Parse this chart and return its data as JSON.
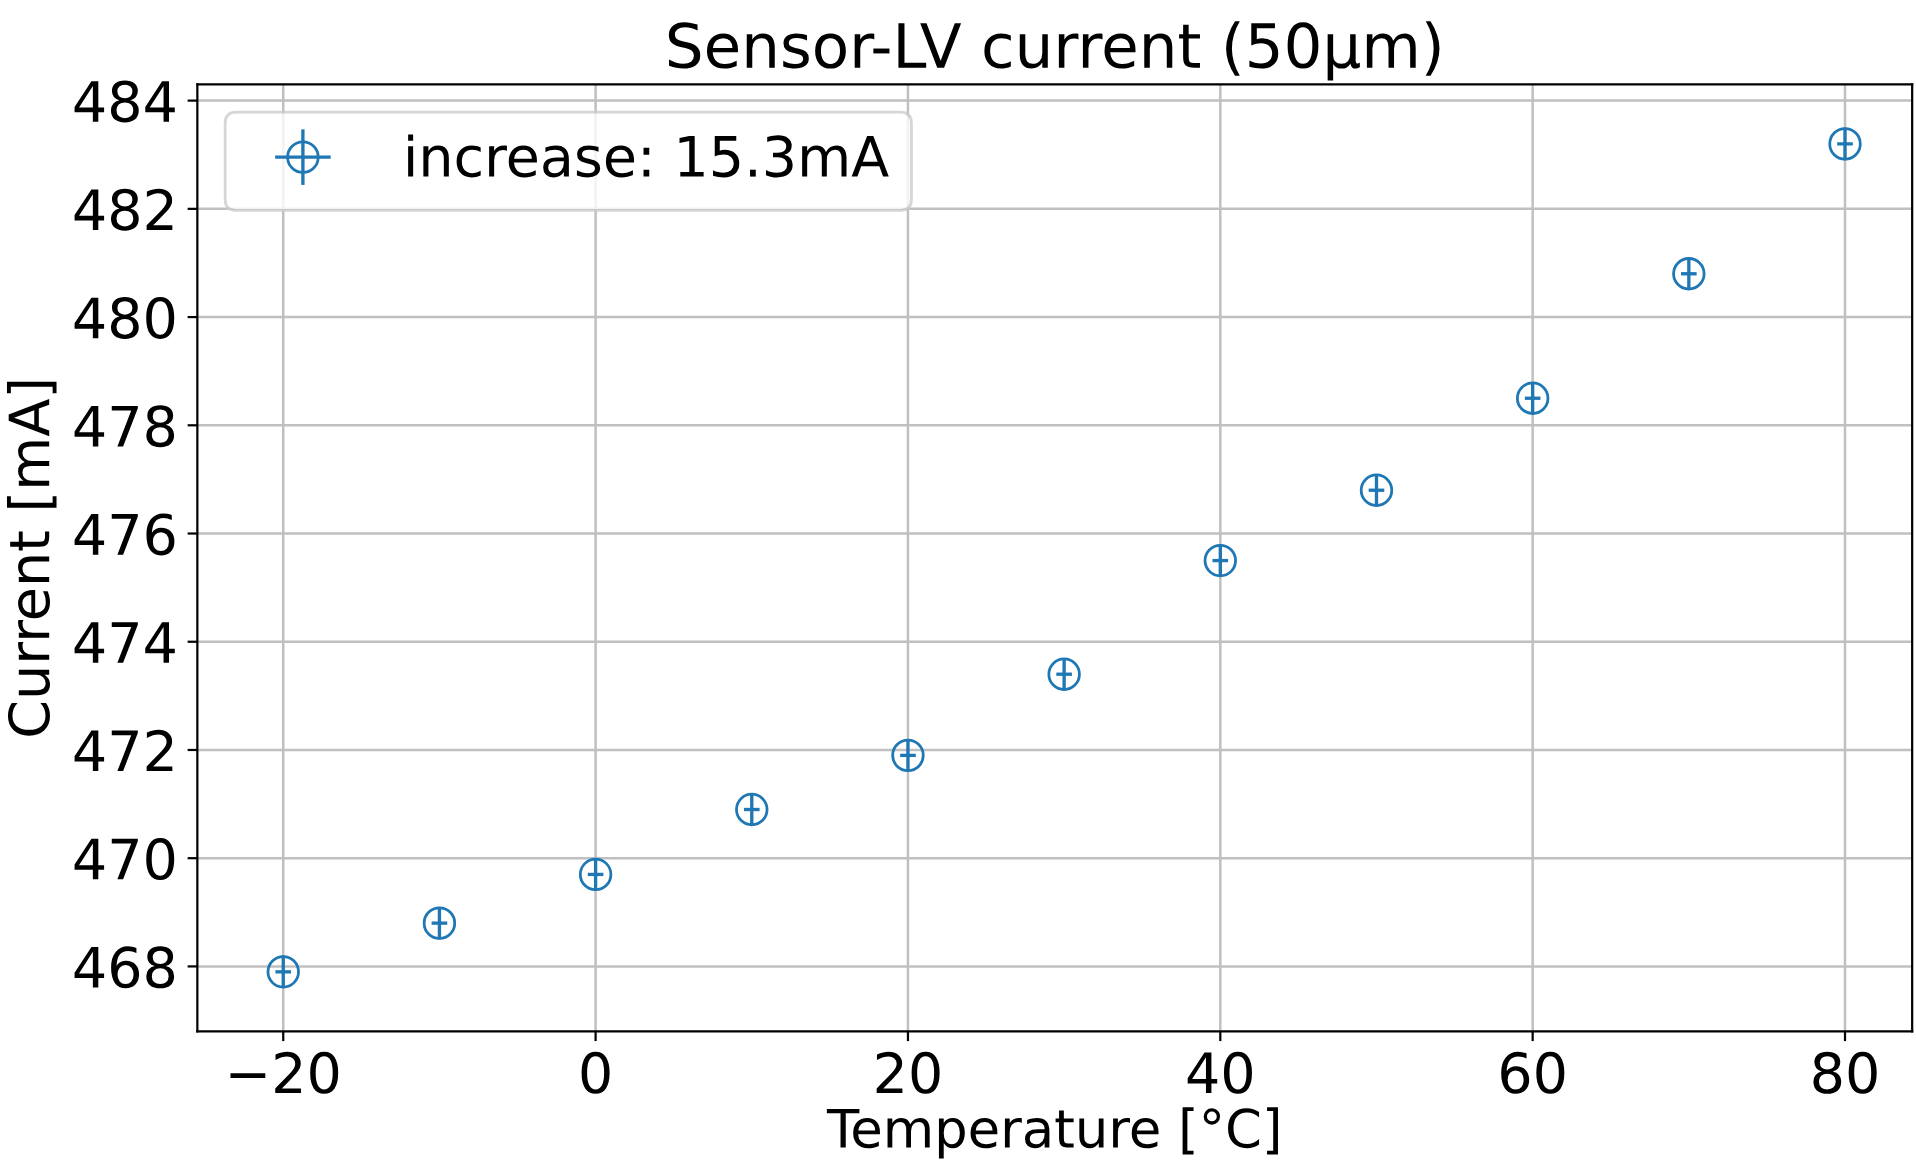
{
  "chart_data": {
    "type": "scatter",
    "title": "Sensor-LV current (50µm)",
    "xlabel": "Temperature [°C]",
    "ylabel": "Current [mA]",
    "x": [
      -20,
      -10,
      0,
      10,
      20,
      30,
      40,
      50,
      60,
      70,
      80
    ],
    "series": [
      {
        "name": "increase: 15.3mA",
        "color": "#1f77b4",
        "values": [
          467.9,
          468.8,
          469.7,
          470.9,
          471.9,
          473.4,
          475.5,
          476.8,
          478.5,
          480.8,
          483.2
        ],
        "errors": [
          0.3,
          0.3,
          0.3,
          0.3,
          0.3,
          0.3,
          0.3,
          0.3,
          0.3,
          0.3,
          0.3
        ],
        "xerrors": [
          0.5,
          0.5,
          0.5,
          0.5,
          0.5,
          0.5,
          0.5,
          0.5,
          0.5,
          0.5,
          0.5
        ]
      }
    ],
    "xlim": [
      -25.5,
      84.3
    ],
    "xticks": [
      {
        "value": -20,
        "label": "−20"
      },
      0,
      20,
      40,
      60,
      80
    ],
    "ylim": [
      466.8,
      484.3
    ],
    "yticks": [
      468,
      470,
      472,
      474,
      476,
      478,
      480,
      482,
      484
    ],
    "grid": true,
    "legend": "top left",
    "marker": "circle"
  }
}
